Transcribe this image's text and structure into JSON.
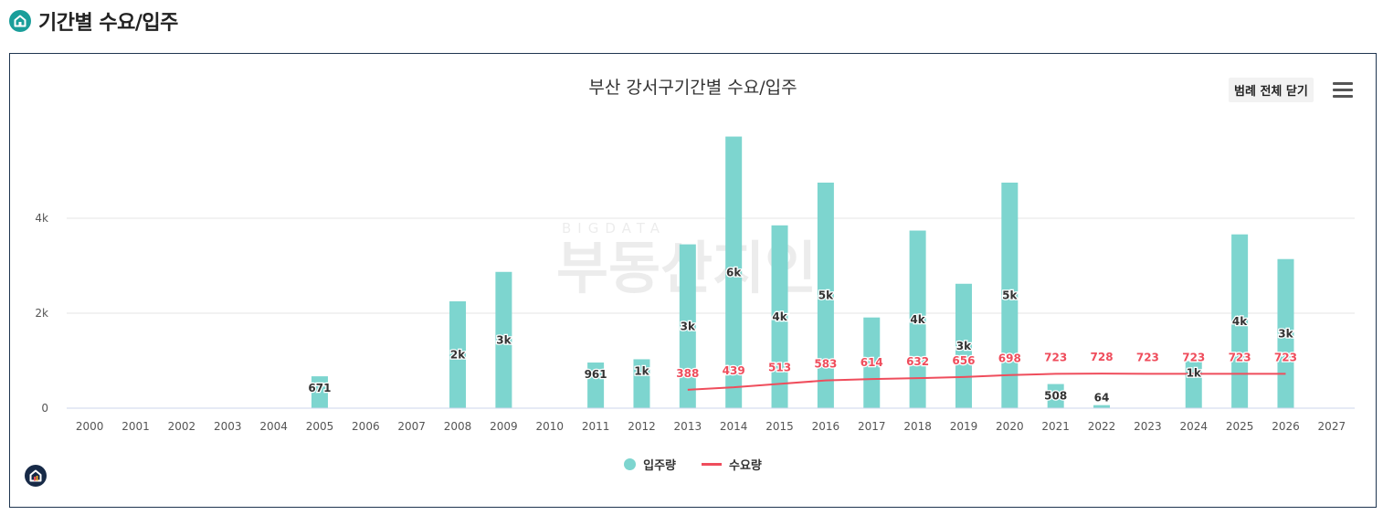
{
  "page": {
    "title": "기간별 수요/입주"
  },
  "panel": {
    "legend_toggle_label": "범례 전체 닫기",
    "watermark_top": "BIGDATA",
    "watermark_main": "부동산지인"
  },
  "colors": {
    "supply_bar": "#7dd5cf",
    "demand_line": "#ef4d5c",
    "axis": "#ccd6eb",
    "grid": "#e6e6e6",
    "brand": "#172a47",
    "icon_teal": "#1a9e9a"
  },
  "chart_data": {
    "type": "bar",
    "title": "부산 강서구기간별 수요/입주",
    "categories": [
      "2000",
      "2001",
      "2002",
      "2003",
      "2004",
      "2005",
      "2006",
      "2007",
      "2008",
      "2009",
      "2010",
      "2011",
      "2012",
      "2013",
      "2014",
      "2015",
      "2016",
      "2017",
      "2018",
      "2019",
      "2020",
      "2021",
      "2022",
      "2023",
      "2024",
      "2025",
      "2026",
      "2027"
    ],
    "ylim": [
      0,
      6000
    ],
    "yticks": [
      0,
      2000,
      4000
    ],
    "ytick_labels": [
      "0",
      "2k",
      "4k"
    ],
    "series": [
      {
        "name": "입주량",
        "kind": "bar",
        "values": [
          0,
          0,
          0,
          0,
          0,
          671,
          0,
          0,
          2250,
          2870,
          0,
          961,
          1030,
          3450,
          5720,
          3850,
          4750,
          1910,
          3740,
          2620,
          4750,
          508,
          64,
          0,
          990,
          3660,
          3140,
          0
        ],
        "labels": [
          "",
          "",
          "",
          "",
          "",
          "671",
          "",
          "",
          "2k",
          "3k",
          "",
          "961",
          "1k",
          "3k",
          "6k",
          "4k",
          "5k",
          "",
          "4k",
          "3k",
          "5k",
          "508",
          "64",
          "",
          "1k",
          "4k",
          "3k",
          ""
        ]
      },
      {
        "name": "수요량",
        "kind": "line",
        "values": [
          null,
          null,
          null,
          null,
          null,
          null,
          null,
          null,
          null,
          null,
          null,
          null,
          null,
          388,
          439,
          513,
          583,
          614,
          632,
          656,
          698,
          723,
          728,
          723,
          723,
          723,
          723,
          null
        ],
        "labels": [
          "",
          "",
          "",
          "",
          "",
          "",
          "",
          "",
          "",
          "",
          "",
          "",
          "",
          "388",
          "439",
          "513",
          "583",
          "614",
          "632",
          "656",
          "698",
          "723",
          "728",
          "723",
          "723",
          "723",
          "723",
          ""
        ]
      }
    ],
    "legend": [
      "입주량",
      "수요량"
    ],
    "legend_position": "bottom-center"
  }
}
